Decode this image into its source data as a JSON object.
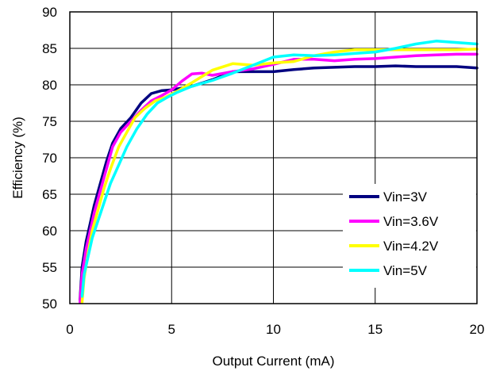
{
  "chart_data": {
    "type": "line",
    "xlabel": "Output Current (mA)",
    "ylabel": "Efficiency (%)",
    "xlim": [
      0,
      20
    ],
    "ylim": [
      50,
      90
    ],
    "x_ticks": [
      0,
      5,
      10,
      15,
      20
    ],
    "y_ticks": [
      50,
      55,
      60,
      65,
      70,
      75,
      80,
      85,
      90
    ],
    "x_tick_labels": [
      "0",
      "5",
      "10",
      "15",
      "20"
    ],
    "y_tick_labels": [
      "50",
      "55",
      "60",
      "65",
      "70",
      "75",
      "80",
      "85",
      "90"
    ],
    "grid": true,
    "legend_position": "bottom-right",
    "series": [
      {
        "name": "Vin=3V",
        "color": "#000080",
        "points": [
          [
            0.5,
            50.5
          ],
          [
            0.6,
            55
          ],
          [
            0.8,
            58.5
          ],
          [
            1.0,
            61
          ],
          [
            1.2,
            63.5
          ],
          [
            1.5,
            66.5
          ],
          [
            1.8,
            69.5
          ],
          [
            2.1,
            72
          ],
          [
            2.5,
            74
          ],
          [
            3.0,
            75.5
          ],
          [
            3.5,
            77.5
          ],
          [
            4.0,
            78.8
          ],
          [
            4.5,
            79.2
          ],
          [
            5.0,
            79.3
          ],
          [
            6.0,
            79.8
          ],
          [
            7.0,
            80.7
          ],
          [
            8.0,
            81.8
          ],
          [
            9.0,
            81.8
          ],
          [
            10.0,
            81.8
          ],
          [
            11.0,
            82.1
          ],
          [
            12.0,
            82.3
          ],
          [
            13.0,
            82.4
          ],
          [
            14.0,
            82.5
          ],
          [
            15.0,
            82.5
          ],
          [
            16.0,
            82.6
          ],
          [
            17.0,
            82.5
          ],
          [
            18.0,
            82.5
          ],
          [
            19.0,
            82.5
          ],
          [
            20.0,
            82.3
          ]
        ]
      },
      {
        "name": "Vin=3.6V",
        "color": "#FF00FF",
        "points": [
          [
            0.5,
            50.2
          ],
          [
            0.6,
            54
          ],
          [
            0.8,
            57.5
          ],
          [
            1.0,
            60
          ],
          [
            1.2,
            62.5
          ],
          [
            1.5,
            65.5
          ],
          [
            1.8,
            68.5
          ],
          [
            2.1,
            71.5
          ],
          [
            2.5,
            73.5
          ],
          [
            3.0,
            75
          ],
          [
            3.5,
            76.5
          ],
          [
            4.0,
            77.8
          ],
          [
            4.5,
            78.5
          ],
          [
            5.0,
            79.3
          ],
          [
            5.5,
            80.5
          ],
          [
            6.0,
            81.5
          ],
          [
            6.5,
            81.6
          ],
          [
            7.0,
            81.3
          ],
          [
            8.0,
            81.8
          ],
          [
            9.0,
            82.2
          ],
          [
            10.0,
            82.8
          ],
          [
            11.0,
            83.5
          ],
          [
            12.0,
            83.5
          ],
          [
            13.0,
            83.3
          ],
          [
            14.0,
            83.5
          ],
          [
            15.0,
            83.6
          ],
          [
            16.0,
            83.8
          ],
          [
            17.0,
            84.0
          ],
          [
            18.0,
            84.1
          ],
          [
            19.0,
            84.2
          ],
          [
            20.0,
            84.2
          ]
        ]
      },
      {
        "name": "Vin=4.2V",
        "color": "#FFFF00",
        "points": [
          [
            0.6,
            50.2
          ],
          [
            0.7,
            53.5
          ],
          [
            0.9,
            57
          ],
          [
            1.1,
            60
          ],
          [
            1.4,
            63
          ],
          [
            1.7,
            66
          ],
          [
            2.0,
            68.5
          ],
          [
            2.4,
            71.5
          ],
          [
            2.8,
            73.5
          ],
          [
            3.2,
            75.5
          ],
          [
            3.7,
            76.8
          ],
          [
            4.2,
            77.8
          ],
          [
            4.7,
            78.3
          ],
          [
            5.2,
            79.0
          ],
          [
            6.0,
            80.3
          ],
          [
            7.0,
            82.0
          ],
          [
            8.0,
            82.9
          ],
          [
            9.0,
            82.7
          ],
          [
            10.0,
            83.0
          ],
          [
            11.0,
            83.2
          ],
          [
            12.0,
            84.0
          ],
          [
            13.0,
            84.5
          ],
          [
            14.0,
            84.8
          ],
          [
            15.0,
            84.8
          ],
          [
            16.0,
            84.8
          ],
          [
            17.0,
            84.8
          ],
          [
            18.0,
            84.8
          ],
          [
            19.0,
            84.8
          ],
          [
            20.0,
            84.9
          ]
        ]
      },
      {
        "name": "Vin=5V",
        "color": "#00FFFF",
        "points": [
          [
            0.6,
            51
          ],
          [
            0.7,
            54
          ],
          [
            0.9,
            56.5
          ],
          [
            1.1,
            59
          ],
          [
            1.4,
            61.5
          ],
          [
            1.7,
            64
          ],
          [
            2.0,
            66.5
          ],
          [
            2.4,
            69
          ],
          [
            2.8,
            71.5
          ],
          [
            3.3,
            74
          ],
          [
            3.8,
            76
          ],
          [
            4.3,
            77.5
          ],
          [
            4.8,
            78.3
          ],
          [
            5.3,
            79.0
          ],
          [
            6.0,
            79.8
          ],
          [
            7.0,
            80.6
          ],
          [
            8.0,
            81.6
          ],
          [
            9.0,
            82.7
          ],
          [
            10.0,
            83.8
          ],
          [
            11.0,
            84.1
          ],
          [
            12.0,
            84.0
          ],
          [
            13.0,
            84.1
          ],
          [
            14.0,
            84.3
          ],
          [
            15.0,
            84.5
          ],
          [
            16.0,
            85.0
          ],
          [
            17.0,
            85.6
          ],
          [
            18.0,
            86.0
          ],
          [
            19.0,
            85.8
          ],
          [
            20.0,
            85.6
          ]
        ]
      }
    ]
  }
}
